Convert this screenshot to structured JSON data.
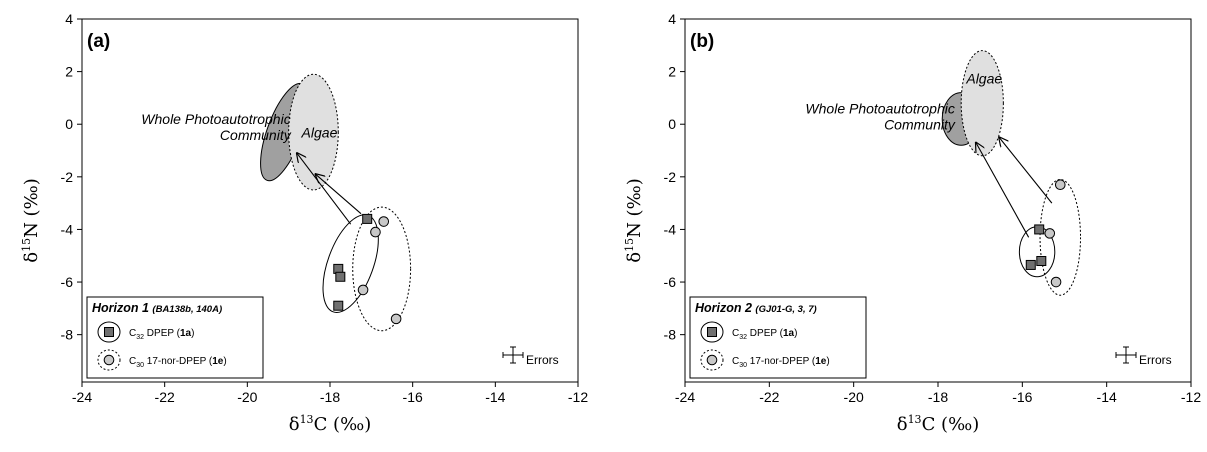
{
  "chart_data": [
    {
      "type": "scatter",
      "panel_label": "(a)",
      "xlabel": {
        "main": "δ",
        "sup": "13",
        "rest": "C (‰)"
      },
      "ylabel": {
        "main": "δ",
        "sup": "15",
        "rest": "N (‰)"
      },
      "xlim": [
        -24,
        -12
      ],
      "ylim": [
        -9.8,
        4
      ],
      "xticks": [
        -24,
        -22,
        -20,
        -18,
        -16,
        -14,
        -12
      ],
      "yticks": [
        -8,
        -6,
        -4,
        -2,
        0,
        2,
        4
      ],
      "grid": false,
      "series": [
        {
          "name": "C32 DPEP (1a)",
          "marker": "square",
          "color": "#707070",
          "points": [
            [
              -17.1,
              -3.6
            ],
            [
              -17.8,
              -5.5
            ],
            [
              -17.75,
              -5.8
            ],
            [
              -17.8,
              -6.9
            ]
          ]
        },
        {
          "name": "C30 17-nor-DPEP (1e)",
          "marker": "circle",
          "color": "#c8c8c8",
          "points": [
            [
              -16.9,
              -4.1
            ],
            [
              -16.7,
              -3.7
            ],
            [
              -17.2,
              -6.3
            ],
            [
              -16.4,
              -7.4
            ]
          ]
        }
      ],
      "regions": [
        {
          "name": "Whole Photoautotrophic Community",
          "center": [
            -19.1,
            -0.3
          ],
          "rx": 0.42,
          "ry": 1.95,
          "angle_deg": 20,
          "fill": "#a0a0a0",
          "stroke_style": "solid"
        },
        {
          "name": "Algae",
          "center": [
            -18.4,
            -0.3
          ],
          "rx": 0.6,
          "ry": 2.2,
          "angle_deg": 0,
          "fill": "#e0e0e0",
          "stroke_style": "dotted"
        },
        {
          "center": [
            -17.5,
            -5.3
          ],
          "rx": 0.55,
          "ry": 1.95,
          "angle_deg": 20,
          "fill": "none",
          "stroke_style": "solid"
        },
        {
          "center": [
            -16.75,
            -5.5
          ],
          "rx": 0.7,
          "ry": 2.35,
          "angle_deg": 0,
          "fill": "none",
          "stroke_style": "dotted"
        }
      ],
      "arrows": [
        {
          "from": [
            -17.5,
            -3.8
          ],
          "to": [
            -18.8,
            -1.1
          ]
        },
        {
          "from": [
            -17.25,
            -3.4
          ],
          "to": [
            -18.35,
            -1.9
          ]
        }
      ],
      "legend": {
        "title": "Horizon 1",
        "subtitle": "(BA138b, 140A)",
        "items": [
          {
            "prefix": "C",
            "sub": "32",
            "text": " DPEP (",
            "bold": "1a",
            "suffix": ")"
          },
          {
            "prefix": "C",
            "sub": "30",
            "text": " 17-nor-DPEP (",
            "bold": "1e",
            "suffix": ")"
          }
        ]
      },
      "errors_label": "Errors"
    },
    {
      "type": "scatter",
      "panel_label": "(b)",
      "xlabel": {
        "main": "δ",
        "sup": "13",
        "rest": "C (‰)"
      },
      "ylabel": {
        "main": "δ",
        "sup": "15",
        "rest": "N (‰)"
      },
      "xlim": [
        -24,
        -12
      ],
      "ylim": [
        -9.8,
        4
      ],
      "xticks": [
        -24,
        -22,
        -20,
        -18,
        -16,
        -14,
        -12
      ],
      "yticks": [
        -8,
        -6,
        -4,
        -2,
        0,
        2,
        4
      ],
      "grid": false,
      "series": [
        {
          "name": "C32 DPEP (1a)",
          "marker": "square",
          "color": "#707070",
          "points": [
            [
              -15.6,
              -4.0
            ],
            [
              -15.8,
              -5.35
            ],
            [
              -15.55,
              -5.2
            ]
          ]
        },
        {
          "name": "C30 17-nor-DPEP (1e)",
          "marker": "circle",
          "color": "#c8c8c8",
          "points": [
            [
              -15.1,
              -2.3
            ],
            [
              -15.35,
              -4.15
            ],
            [
              -15.2,
              -6.0
            ]
          ]
        }
      ],
      "regions": [
        {
          "name": "Whole Photoautotrophic Community",
          "center": [
            -17.45,
            0.2
          ],
          "rx": 0.45,
          "ry": 1.0,
          "angle_deg": 0,
          "fill": "#a0a0a0",
          "stroke_style": "solid"
        },
        {
          "name": "Algae",
          "center": [
            -16.95,
            0.8
          ],
          "rx": 0.5,
          "ry": 2.0,
          "angle_deg": 0,
          "fill": "#e0e0e0",
          "stroke_style": "dotted"
        },
        {
          "center": [
            -15.65,
            -4.85
          ],
          "rx": 0.42,
          "ry": 0.95,
          "angle_deg": 0,
          "fill": "none",
          "stroke_style": "solid"
        },
        {
          "center": [
            -15.1,
            -4.3
          ],
          "rx": 0.48,
          "ry": 2.2,
          "angle_deg": 0,
          "fill": "none",
          "stroke_style": "dotted"
        }
      ],
      "arrows": [
        {
          "from": [
            -15.85,
            -4.3
          ],
          "to": [
            -17.1,
            -0.7
          ]
        },
        {
          "from": [
            -15.3,
            -3.0
          ],
          "to": [
            -16.55,
            -0.5
          ]
        }
      ],
      "legend": {
        "title": "Horizon 2",
        "subtitle": "(GJ01-G, 3, 7)",
        "items": [
          {
            "prefix": "C",
            "sub": "32",
            "text": " DPEP (",
            "bold": "1a",
            "suffix": ")"
          },
          {
            "prefix": "C",
            "sub": "30",
            "text": " 17-nor-DPEP (",
            "bold": "1e",
            "suffix": ")"
          }
        ]
      },
      "errors_label": "Errors"
    }
  ]
}
